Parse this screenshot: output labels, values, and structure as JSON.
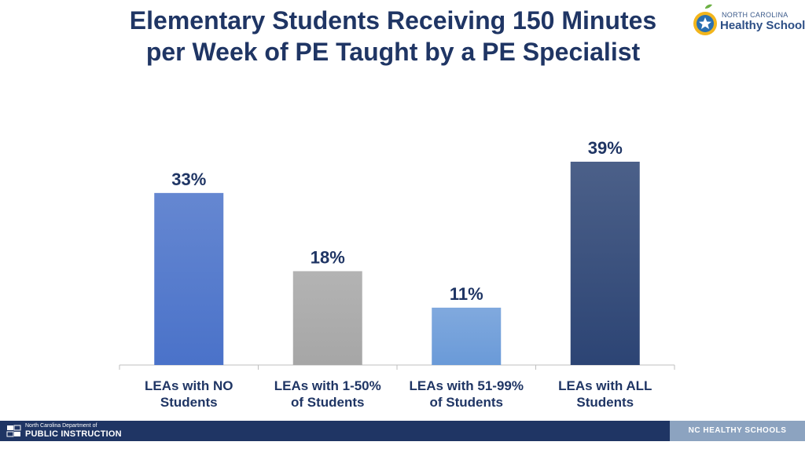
{
  "header": {
    "title_line1": "Elementary Students Receiving 150 Minutes",
    "title_line2": "per Week of PE Taught by a PE Specialist",
    "logo_line1": "NORTH CAROLINA",
    "logo_line2": "Healthy Schools"
  },
  "footer": {
    "department_line1": "North Carolina Department of",
    "department_line2": "PUBLIC INSTRUCTION",
    "right_label": "NC HEALTHY SCHOOLS"
  },
  "colors": {
    "title": "#1f3564",
    "bar1": "#4a72c9",
    "bar2": "#a6a6a6",
    "bar3": "#6a9ad8",
    "bar4": "#2c4474",
    "footer": "#1f3564",
    "footer_accent": "#8ca3c0"
  },
  "chart_data": {
    "type": "bar",
    "categories": [
      [
        "LEAs with NO",
        "Students"
      ],
      [
        "LEAs with 1-50%",
        "of Students"
      ],
      [
        "LEAs with 51-99%",
        "of Students"
      ],
      [
        "LEAs with ALL",
        "Students"
      ]
    ],
    "values": [
      33,
      18,
      11,
      39
    ],
    "data_labels": [
      "33%",
      "18%",
      "11%",
      "39%"
    ],
    "ylim": [
      0,
      39
    ],
    "grid": false,
    "legend": "none",
    "title": "",
    "xlabel": "",
    "ylabel": ""
  }
}
